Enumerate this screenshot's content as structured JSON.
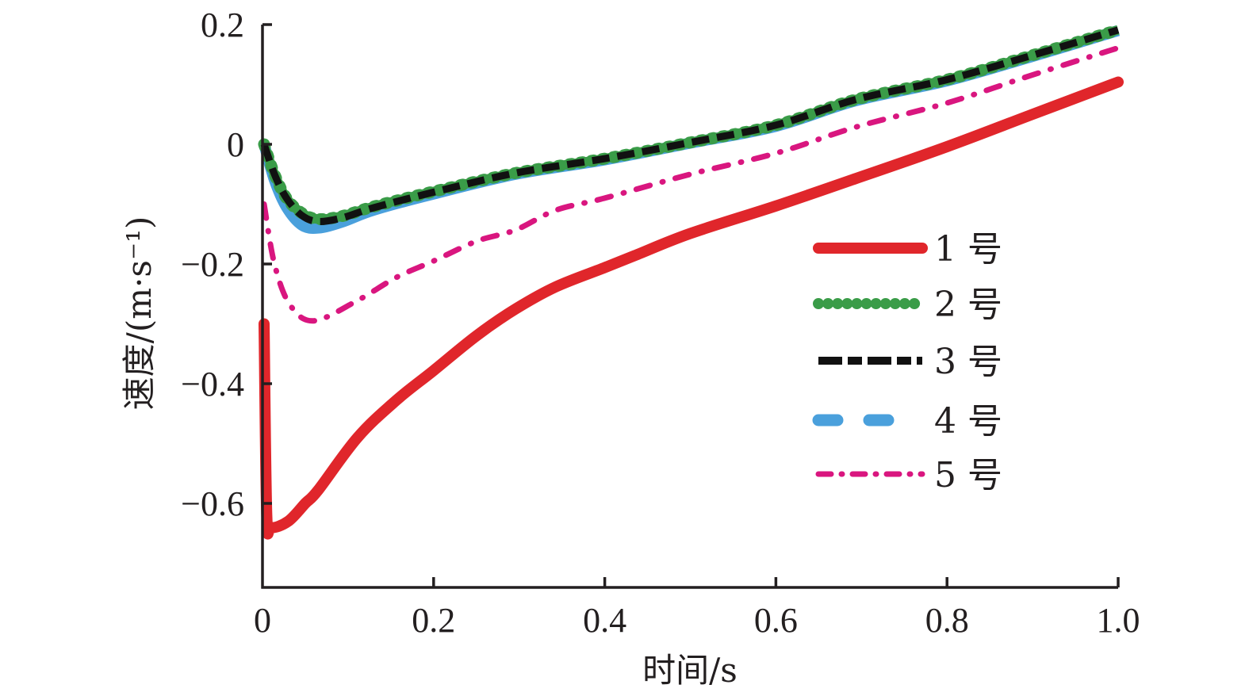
{
  "chart_data": {
    "type": "line",
    "title": "",
    "xlabel": "时间/s",
    "ylabel": "速度/(m·s⁻¹)",
    "xlim": [
      0,
      1.0
    ],
    "ylim": [
      -0.735,
      0.2
    ],
    "xticks": [
      0,
      0.2,
      0.4,
      0.6,
      0.8,
      1.0
    ],
    "xtick_labels": [
      "0",
      "0.2",
      "0.4",
      "0.6",
      "0.8",
      "1.0"
    ],
    "yticks": [
      0.2,
      0,
      -0.2,
      -0.4,
      -0.6
    ],
    "ytick_labels": [
      "0.2",
      "0",
      "−0.2",
      "−0.4",
      "−0.6"
    ],
    "grid": false,
    "legend_position": "right",
    "series": [
      {
        "name": "1 号",
        "color": "#e0262b",
        "style": "solid",
        "x": [
          0,
          0.005,
          0.01,
          0.03,
          0.05,
          0.065,
          0.111,
          0.157,
          0.2,
          0.25,
          0.296,
          0.343,
          0.4,
          0.435,
          0.5,
          0.6,
          0.694,
          0.8,
          0.898,
          1.0
        ],
        "y": [
          -0.3,
          -0.62,
          -0.64,
          -0.63,
          -0.6,
          -0.578,
          -0.49,
          -0.427,
          -0.378,
          -0.32,
          -0.275,
          -0.238,
          -0.206,
          -0.186,
          -0.149,
          -0.103,
          -0.057,
          -0.004,
          0.049,
          0.104
        ]
      },
      {
        "name": "2 号",
        "color": "#3a9c48",
        "style": "dotted",
        "x": [
          0,
          0.014,
          0.028,
          0.046,
          0.065,
          0.093,
          0.13,
          0.2,
          0.296,
          0.4,
          0.5,
          0.6,
          0.694,
          0.8,
          0.898,
          1.0
        ],
        "y": [
          0,
          -0.05,
          -0.09,
          -0.115,
          -0.125,
          -0.12,
          -0.104,
          -0.079,
          -0.048,
          -0.024,
          0.003,
          0.032,
          0.075,
          0.108,
          0.148,
          0.191
        ]
      },
      {
        "name": "3 号",
        "color": "#111111",
        "style": "dashed",
        "x": [
          0,
          0.014,
          0.028,
          0.046,
          0.065,
          0.093,
          0.13,
          0.2,
          0.296,
          0.4,
          0.5,
          0.6,
          0.694,
          0.8,
          0.898,
          1.0
        ],
        "y": [
          0,
          -0.05,
          -0.09,
          -0.119,
          -0.129,
          -0.123,
          -0.106,
          -0.08,
          -0.048,
          -0.024,
          0.003,
          0.032,
          0.075,
          0.108,
          0.148,
          0.191
        ]
      },
      {
        "name": "4 号",
        "color": "#4aa0dc",
        "style": "long-dash",
        "x": [
          0,
          0.014,
          0.028,
          0.046,
          0.065,
          0.093,
          0.13,
          0.2,
          0.296,
          0.4,
          0.5,
          0.6,
          0.694,
          0.8,
          0.898,
          1.0
        ],
        "y": [
          0,
          -0.06,
          -0.105,
          -0.135,
          -0.14,
          -0.13,
          -0.11,
          -0.083,
          -0.05,
          -0.026,
          0.002,
          0.03,
          0.073,
          0.106,
          0.146,
          0.19
        ]
      },
      {
        "name": "5 号",
        "color": "#d9167f",
        "style": "dash-dot",
        "x": [
          0,
          0.014,
          0.032,
          0.06,
          0.111,
          0.157,
          0.2,
          0.25,
          0.296,
          0.343,
          0.4,
          0.5,
          0.6,
          0.694,
          0.8,
          0.898,
          1.0
        ],
        "y": [
          -0.1,
          -0.2,
          -0.268,
          -0.295,
          -0.261,
          -0.222,
          -0.195,
          -0.162,
          -0.143,
          -0.11,
          -0.09,
          -0.05,
          -0.015,
          0.029,
          0.069,
          0.115,
          0.161
        ]
      }
    ]
  }
}
